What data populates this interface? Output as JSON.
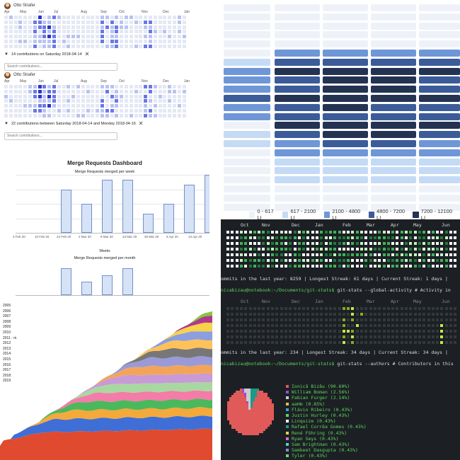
{
  "contrib": {
    "user_name": "Otto Strafer",
    "months": [
      "Apr",
      "May",
      "Jun",
      "Jul",
      "Aug",
      "Sep",
      "Oct",
      "Nov",
      "Dec",
      "Jan"
    ],
    "widget1": {
      "selection_text": "14 contributions on Saturday 2018-04-14",
      "search_placeholder": "Search contributions..."
    },
    "widget2": {
      "selection_text": "22 contributions between Saturday 2018-04-14 and Monday 2018-04-16",
      "search_placeholder": "Search contributions..."
    },
    "colors": {
      "empty": "#e4e8f4",
      "light": "#b9c3f2",
      "mid": "#6a78e6",
      "dark": "#2b35c9"
    }
  },
  "heatmap": {
    "legend": [
      "0 - 617 LI",
      "617 - 2100 LI",
      "2100 - 4800 LI",
      "4800 - 7200 LI",
      "7200 - 12100 LI"
    ],
    "colors": [
      "#eef2f8",
      "#c5dbf5",
      "#6f97d8",
      "#3c5c99",
      "#243352"
    ]
  },
  "merge_requests": {
    "title": "Merge Requests Dashboard",
    "subtitle_week": "Merge Requests merged per week",
    "subtitle_month": "Merge Requests merged per month",
    "weeks_label": "Weeks",
    "x_labels": [
      "3 Feb 20",
      "10 Feb 20",
      "24 Feb 20",
      "2 Mar 20",
      "9 Mar 20",
      "23 Mar 20",
      "30 Mar 20",
      "6 Apr 20",
      "13 Apr 20"
    ],
    "week_values": [
      0,
      0,
      9,
      6,
      11,
      11,
      4,
      6,
      10,
      12
    ],
    "month_values": [
      0,
      0,
      4,
      2,
      3,
      4,
      0,
      0,
      0,
      0
    ]
  },
  "stacked": {
    "years": [
      "2005",
      "2006",
      "2007",
      "2008",
      "2009",
      "2010",
      "2011 - m",
      "2012",
      "2013",
      "2014",
      "2015",
      "2016",
      "2017",
      "2018",
      "2019"
    ],
    "colors": [
      "#e04a2f",
      "#3f6fd6",
      "#f4a93b",
      "#4cb85c",
      "#f37ca8",
      "#a8d8a0",
      "#c89ad6",
      "#f2a55a",
      "#9a9ad8",
      "#777777",
      "#ffc25a",
      "#8a9ee0",
      "#f7d24a",
      "#b03a8a",
      "#88c441"
    ]
  },
  "terminal": {
    "months_top": [
      "Oct",
      "Nov",
      "Dec",
      "Jan",
      "Feb",
      "Mar",
      "Apr",
      "May",
      "Jun"
    ],
    "stats1": "ommits in the last year: 8259 | Longest Streak: 61 days | Current Streak: 1 days |",
    "prompt1": "nicabizau@notebook:~/Documents/git-stats$",
    "command1": " git-stats --global-activity # Activity in",
    "months_mid": [
      "Oct",
      "Nov",
      "Dec",
      "Jan",
      "Feb",
      "Mar",
      "Apr",
      "May",
      "Jun"
    ],
    "stats2": "ommits in the last year: 234 | Longest Streak: 34 days | Current Streak: 34 days |",
    "prompt2": "nicabizau@notebook:~/Documents/git-stats$",
    "command2": " git-stats --authors # Contributors in this",
    "authors": [
      {
        "label": "Ionică Bizău (90.60%)",
        "color": "#e05a5a"
      },
      {
        "label": "William Boman (2.56%)",
        "color": "#9a4ad8"
      },
      {
        "label": "Fabian Furger (2.14%)",
        "color": "#cccccc"
      },
      {
        "label": "aaHm (0.85%)",
        "color": "#e0c040"
      },
      {
        "label": "Flávio Ribeiro (0.43%)",
        "color": "#3aa0d8"
      },
      {
        "label": "Justin Hurley (0.43%)",
        "color": "#5ad86a"
      },
      {
        "label": "Linquize (0.43%)",
        "color": "#ffffff"
      },
      {
        "label": "Rafael Corrêa Gomes (0.43%)",
        "color": "#1a9a8a"
      },
      {
        "label": "René Föhring (0.43%)",
        "color": "#d8d84a"
      },
      {
        "label": "Ryan Seys (0.43%)",
        "color": "#d86ad8"
      },
      {
        "label": "Sam Brightman (0.43%)",
        "color": "#4ad8d8"
      },
      {
        "label": "Samkeet Dasgupta (0.43%)",
        "color": "#8a8ad8"
      },
      {
        "label": "Tyler (0.43%)",
        "color": "#6ad86a"
      }
    ],
    "colors": {
      "bg": "#1c2024",
      "text": "#dddddd",
      "prompt": "#5fd45f",
      "label": "#5fd45f",
      "sep": "#0e1012"
    }
  }
}
